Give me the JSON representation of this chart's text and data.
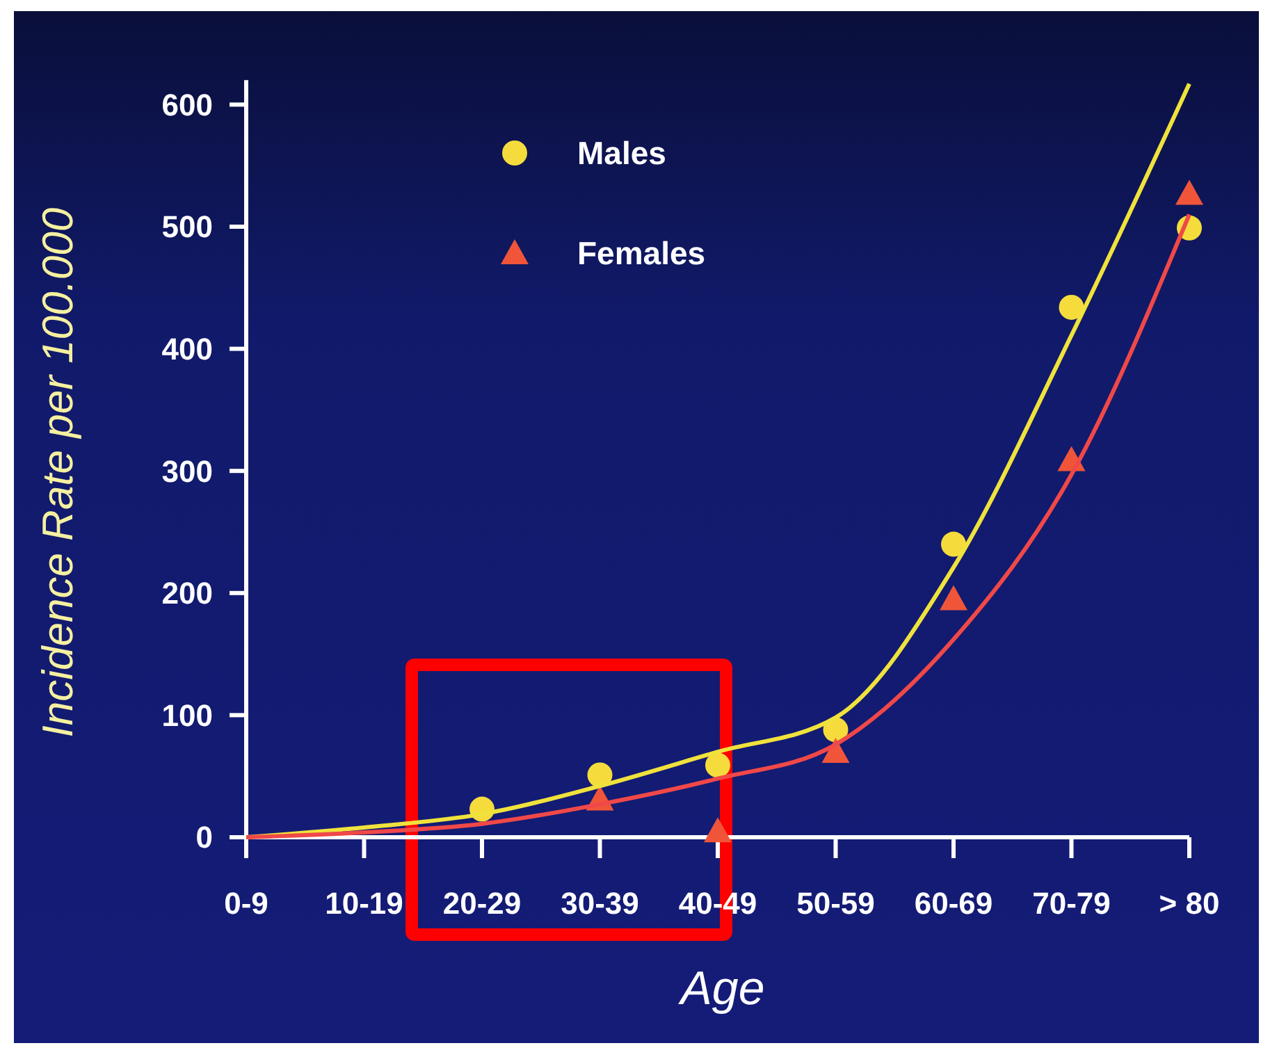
{
  "chart_data": {
    "type": "scatter",
    "xlabel": "Age",
    "ylabel": "Incidence Rate per 100.000",
    "categories": [
      "0-9",
      "10-19",
      "20-29",
      "30-39",
      "40-49",
      "50-59",
      "60-69",
      "70-79",
      "> 80"
    ],
    "ylim": [
      0,
      620
    ],
    "yticks": [
      0,
      100,
      200,
      300,
      400,
      500,
      600
    ],
    "legend": "top left",
    "grid": false,
    "series": [
      {
        "name": "Males",
        "marker": "circle",
        "color": "#f5dc3c",
        "values": [
          null,
          null,
          23,
          51,
          59,
          88,
          240,
          434,
          499
        ]
      },
      {
        "name": "Females",
        "marker": "triangle",
        "color": "#f0553a",
        "values": [
          null,
          null,
          null,
          31,
          5,
          70,
          195,
          309,
          527
        ]
      },
      {
        "type": "line",
        "color": "#f0e23c",
        "line_style": "solid",
        "values": [
          0,
          8,
          19,
          42,
          70,
          98,
          221,
          411,
          617
        ]
      },
      {
        "type": "line",
        "color": "#f04848",
        "line_style": "solid",
        "values": [
          0,
          4,
          11,
          27,
          48,
          76,
          162,
          297,
          510
        ]
      }
    ]
  }
}
